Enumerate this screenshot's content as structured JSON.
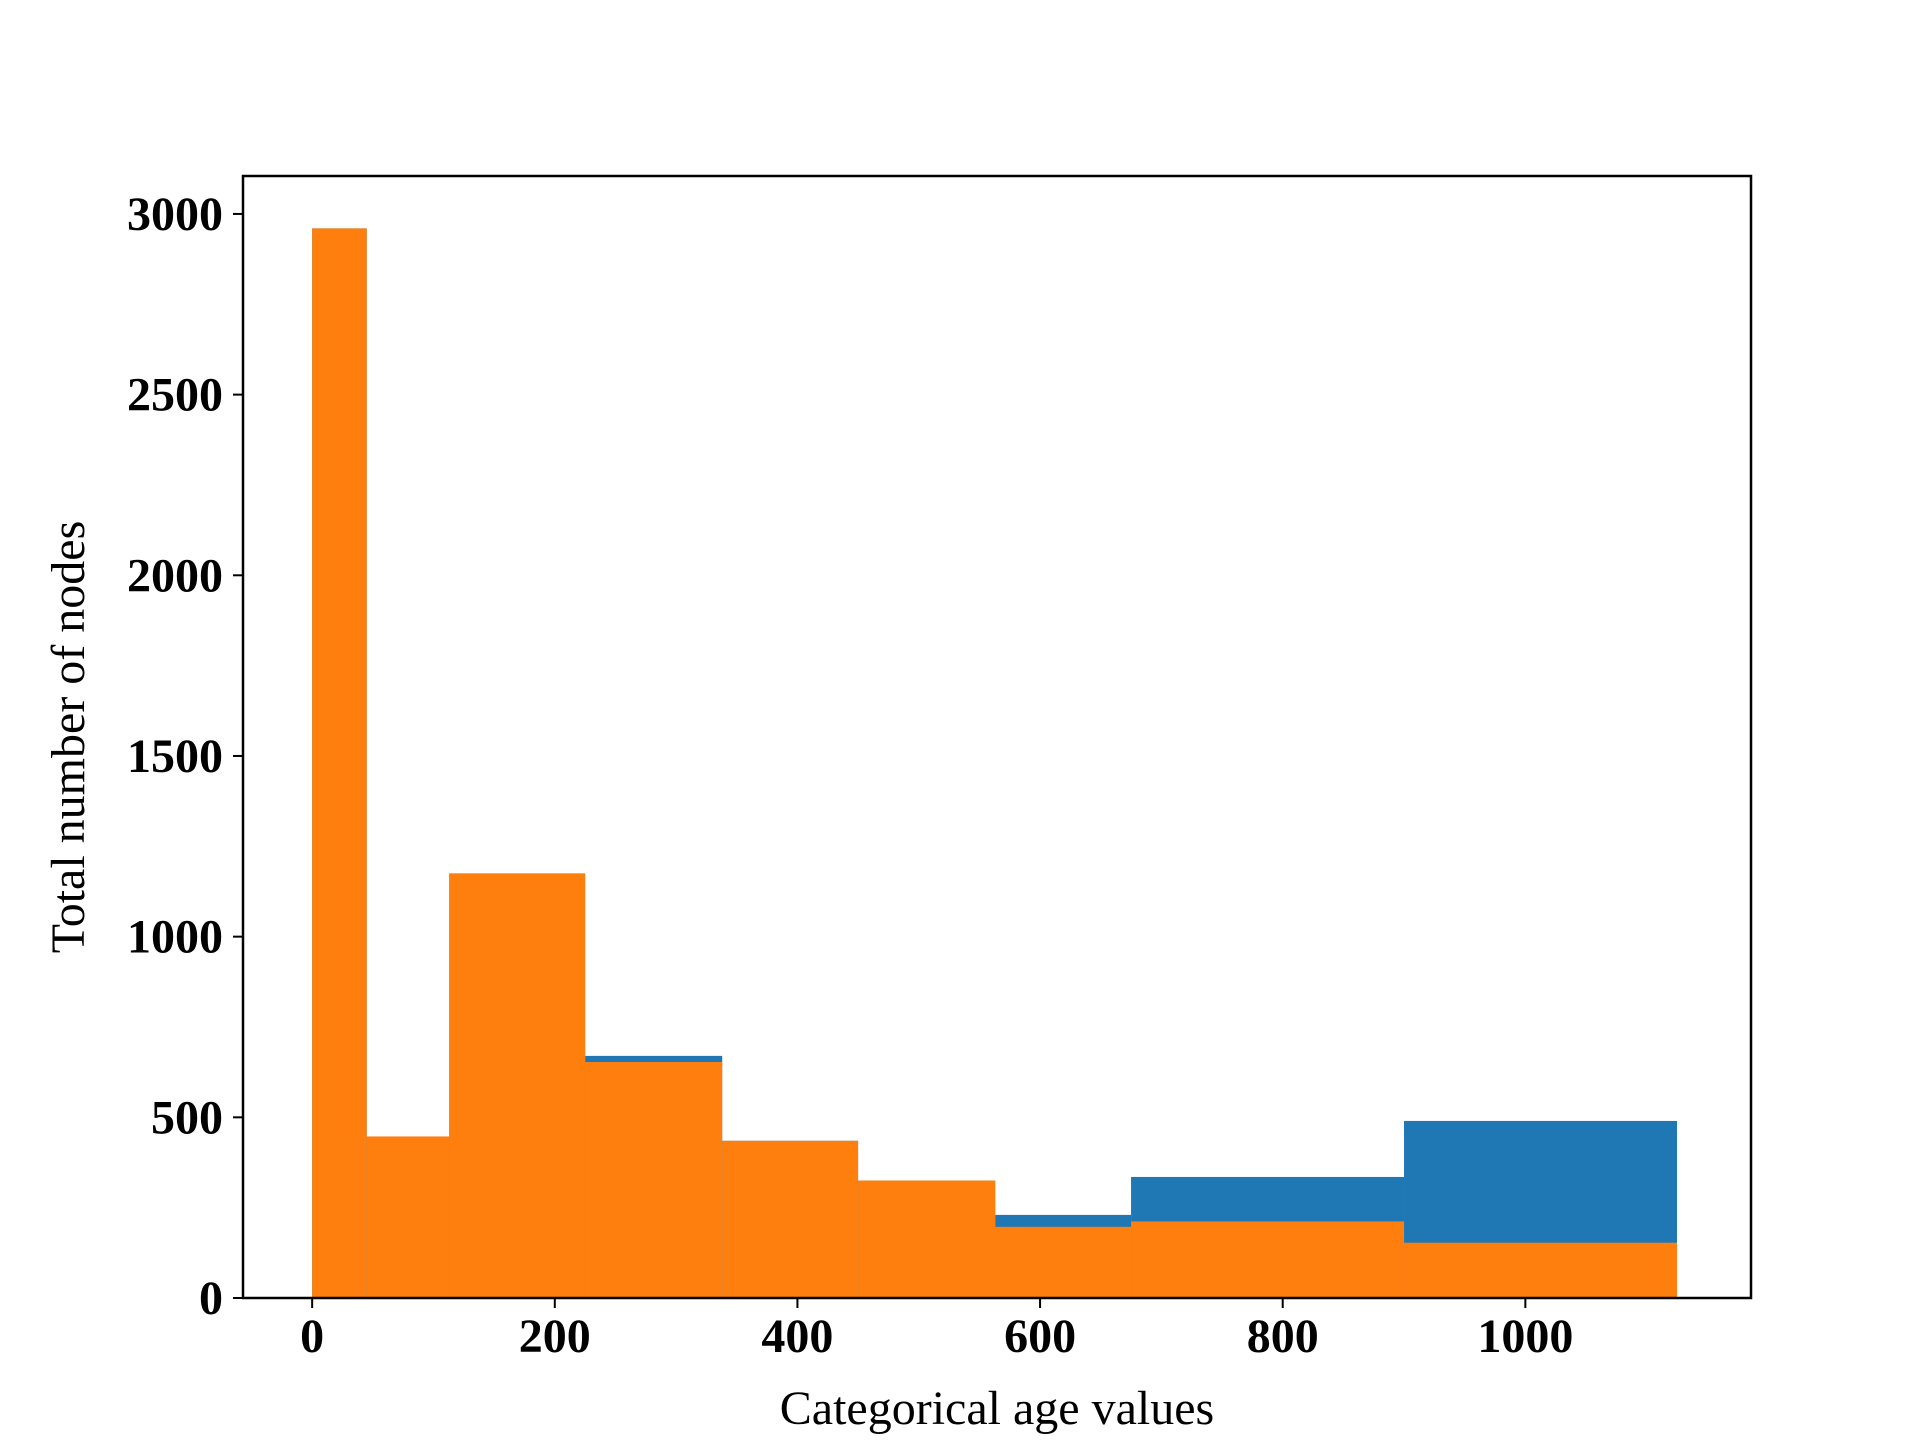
{
  "chart_data": {
    "type": "bar",
    "subtype": "histogram-overlay",
    "title": "",
    "xlabel": "Categorical age values",
    "ylabel": "Total number of nodes",
    "xlim": [
      -57,
      1186
    ],
    "ylim": [
      0,
      3105
    ],
    "xticks": [
      0,
      200,
      400,
      600,
      800,
      1000
    ],
    "yticks": [
      0,
      500,
      1000,
      1500,
      2000,
      2500,
      3000
    ],
    "grid": false,
    "legend": "none",
    "series": [
      {
        "color": "#1f77b4",
        "bins": [
          {
            "x0": 0,
            "x1": 45,
            "value": 2960
          },
          {
            "x0": 45,
            "x1": 113,
            "value": 447
          },
          {
            "x0": 113,
            "x1": 225,
            "value": 1175
          },
          {
            "x0": 225,
            "x1": 338,
            "value": 670
          },
          {
            "x0": 338,
            "x1": 450,
            "value": 435
          },
          {
            "x0": 450,
            "x1": 563,
            "value": 325
          },
          {
            "x0": 563,
            "x1": 675,
            "value": 230
          },
          {
            "x0": 675,
            "x1": 900,
            "value": 335
          },
          {
            "x0": 900,
            "x1": 1125,
            "value": 490
          }
        ]
      },
      {
        "color": "#ff7f0e",
        "bins": [
          {
            "x0": 0,
            "x1": 45,
            "value": 2960
          },
          {
            "x0": 45,
            "x1": 113,
            "value": 447
          },
          {
            "x0": 113,
            "x1": 225,
            "value": 1175
          },
          {
            "x0": 225,
            "x1": 338,
            "value": 653
          },
          {
            "x0": 338,
            "x1": 450,
            "value": 435
          },
          {
            "x0": 450,
            "x1": 563,
            "value": 325
          },
          {
            "x0": 563,
            "x1": 675,
            "value": 197
          },
          {
            "x0": 675,
            "x1": 900,
            "value": 212
          },
          {
            "x0": 900,
            "x1": 1125,
            "value": 153
          }
        ]
      }
    ]
  }
}
